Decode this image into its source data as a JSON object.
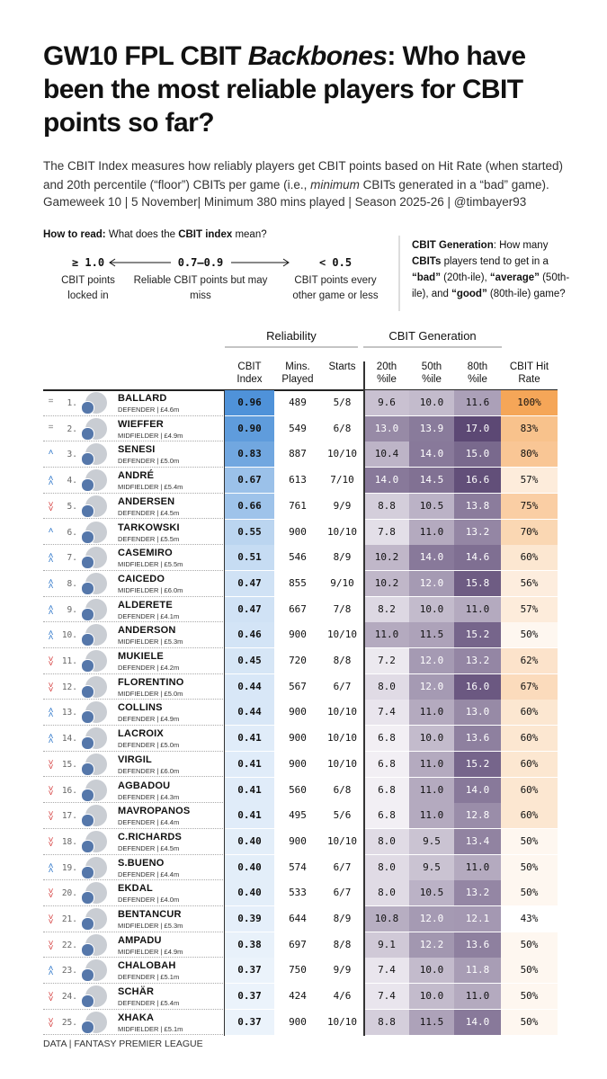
{
  "header": {
    "title_parts": [
      "GW10 FPL CBIT ",
      "Backbones",
      ": Who have been the most reliable players for CBIT points so far?"
    ],
    "subtitle_parts": [
      "The CBIT Index measures how reliably players get CBIT points based on Hit Rate (when started) and 20th percentile (“floor”) CBITs per game (i.e., ",
      "minimum",
      " CBITs generated in a “bad” game)."
    ],
    "meta": "Gameweek 10 | 5 November| Minimum 380 mins played | Season 2025-26 | @timbayer93"
  },
  "how_to_read": {
    "label": "How to read:",
    "question_parts": [
      " What does the ",
      "CBIT index",
      " mean?"
    ],
    "scale": [
      {
        "value": "≥ 1.0",
        "desc": "CBIT points locked in"
      },
      {
        "value": "0.7–0.9",
        "desc": "Reliable CBIT points but may miss"
      },
      {
        "value": "< 0.5",
        "desc": "CBIT points every other game or less"
      }
    ]
  },
  "generation_note": [
    "CBIT Generation",
    ": How many ",
    "CBITs",
    " players tend to get in a ",
    "“bad”",
    " (20th-ile), ",
    "“average”",
    " (50th-ile), and ",
    "“good”",
    " (80th-ile) game?"
  ],
  "table": {
    "groups": [
      "Reliability",
      "CBIT Generation"
    ],
    "columns": [
      "CBIT Index",
      "Mins. Played",
      "Starts",
      "20th %ile",
      "50th %ile",
      "80th %ile",
      "CBIT Hit Rate"
    ],
    "rows": [
      {
        "trend": "=",
        "rank": "1.",
        "name": "BALLARD",
        "info": "DEFENDER | £4.6m",
        "cells": [
          "0.96",
          "489",
          "5/8",
          "9.6",
          "10.0",
          "11.6",
          "100%"
        ]
      },
      {
        "trend": "=",
        "rank": "2.",
        "name": "WIEFFER",
        "info": "MIDFIELDER | £4.9m",
        "cells": [
          "0.90",
          "549",
          "6/8",
          "13.0",
          "13.9",
          "17.0",
          "83%"
        ]
      },
      {
        "trend": "˄",
        "rank": "3.",
        "name": "SENESI",
        "info": "DEFENDER | £5.0m",
        "cells": [
          "0.83",
          "887",
          "10/10",
          "10.4",
          "14.0",
          "15.0",
          "80%"
        ]
      },
      {
        "trend": "˄˄",
        "rank": "4.",
        "name": "ANDRÉ",
        "info": "MIDFIELDER | £5.4m",
        "cells": [
          "0.67",
          "613",
          "7/10",
          "14.0",
          "14.5",
          "16.6",
          "57%"
        ]
      },
      {
        "trend": "˅˅",
        "rank": "5.",
        "name": "ANDERSEN",
        "info": "DEFENDER | £4.5m",
        "cells": [
          "0.66",
          "761",
          "9/9",
          "8.8",
          "10.5",
          "13.8",
          "75%"
        ]
      },
      {
        "trend": "˄",
        "rank": "6.",
        "name": "TARKOWSKI",
        "info": "DEFENDER | £5.5m",
        "cells": [
          "0.55",
          "900",
          "10/10",
          "7.8",
          "11.0",
          "13.2",
          "70%"
        ]
      },
      {
        "trend": "˄˄",
        "rank": "7.",
        "name": "CASEMIRO",
        "info": "MIDFIELDER | £5.5m",
        "cells": [
          "0.51",
          "546",
          "8/9",
          "10.2",
          "14.0",
          "14.6",
          "60%"
        ]
      },
      {
        "trend": "˄˄",
        "rank": "8.",
        "name": "CAICEDO",
        "info": "MIDFIELDER | £6.0m",
        "cells": [
          "0.47",
          "855",
          "9/10",
          "10.2",
          "12.0",
          "15.8",
          "56%"
        ]
      },
      {
        "trend": "˄˄",
        "rank": "9.",
        "name": "ALDERETE",
        "info": "DEFENDER | £4.1m",
        "cells": [
          "0.47",
          "667",
          "7/8",
          "8.2",
          "10.0",
          "11.0",
          "57%"
        ]
      },
      {
        "trend": "˄˄",
        "rank": "10.",
        "name": "ANDERSON",
        "info": "MIDFIELDER | £5.3m",
        "cells": [
          "0.46",
          "900",
          "10/10",
          "11.0",
          "11.5",
          "15.2",
          "50%"
        ]
      },
      {
        "trend": "˅˅",
        "rank": "11.",
        "name": "MUKIELE",
        "info": "DEFENDER | £4.2m",
        "cells": [
          "0.45",
          "720",
          "8/8",
          "7.2",
          "12.0",
          "13.2",
          "62%"
        ]
      },
      {
        "trend": "˅˅",
        "rank": "12.",
        "name": "FLORENTINO",
        "info": "MIDFIELDER | £5.0m",
        "cells": [
          "0.44",
          "567",
          "6/7",
          "8.0",
          "12.0",
          "16.0",
          "67%"
        ]
      },
      {
        "trend": "˄˄",
        "rank": "13.",
        "name": "COLLINS",
        "info": "DEFENDER | £4.9m",
        "cells": [
          "0.44",
          "900",
          "10/10",
          "7.4",
          "11.0",
          "13.0",
          "60%"
        ]
      },
      {
        "trend": "˄˄",
        "rank": "14.",
        "name": "LACROIX",
        "info": "DEFENDER | £5.0m",
        "cells": [
          "0.41",
          "900",
          "10/10",
          "6.8",
          "10.0",
          "13.6",
          "60%"
        ]
      },
      {
        "trend": "˅˅",
        "rank": "15.",
        "name": "VIRGIL",
        "info": "DEFENDER | £6.0m",
        "cells": [
          "0.41",
          "900",
          "10/10",
          "6.8",
          "11.0",
          "15.2",
          "60%"
        ]
      },
      {
        "trend": "˅˅",
        "rank": "16.",
        "name": "AGBADOU",
        "info": "DEFENDER | £4.3m",
        "cells": [
          "0.41",
          "560",
          "6/8",
          "6.8",
          "11.0",
          "14.0",
          "60%"
        ]
      },
      {
        "trend": "˅˅",
        "rank": "17.",
        "name": "MAVROPANOS",
        "info": "DEFENDER | £4.4m",
        "cells": [
          "0.41",
          "495",
          "5/6",
          "6.8",
          "11.0",
          "12.8",
          "60%"
        ]
      },
      {
        "trend": "˅˅",
        "rank": "18.",
        "name": "C.RICHARDS",
        "info": "DEFENDER | £4.5m",
        "cells": [
          "0.40",
          "900",
          "10/10",
          "8.0",
          "9.5",
          "13.4",
          "50%"
        ]
      },
      {
        "trend": "˄˄",
        "rank": "19.",
        "name": "S.BUENO",
        "info": "DEFENDER | £4.4m",
        "cells": [
          "0.40",
          "574",
          "6/7",
          "8.0",
          "9.5",
          "11.0",
          "50%"
        ]
      },
      {
        "trend": "˅˅",
        "rank": "20.",
        "name": "EKDAL",
        "info": "DEFENDER | £4.0m",
        "cells": [
          "0.40",
          "533",
          "6/7",
          "8.0",
          "10.5",
          "13.2",
          "50%"
        ]
      },
      {
        "trend": "˅˅",
        "rank": "21.",
        "name": "BENTANCUR",
        "info": "MIDFIELDER | £5.3m",
        "cells": [
          "0.39",
          "644",
          "8/9",
          "10.8",
          "12.0",
          "12.1",
          "43%"
        ]
      },
      {
        "trend": "˅˅",
        "rank": "22.",
        "name": "AMPADU",
        "info": "MIDFIELDER | £4.9m",
        "cells": [
          "0.38",
          "697",
          "8/8",
          "9.1",
          "12.2",
          "13.6",
          "50%"
        ]
      },
      {
        "trend": "˄˄",
        "rank": "23.",
        "name": "CHALOBAH",
        "info": "DEFENDER | £5.1m",
        "cells": [
          "0.37",
          "750",
          "9/9",
          "7.4",
          "10.0",
          "11.8",
          "50%"
        ]
      },
      {
        "trend": "˅˅",
        "rank": "24.",
        "name": "SCHÄR",
        "info": "DEFENDER | £5.4m",
        "cells": [
          "0.37",
          "424",
          "4/6",
          "7.4",
          "10.0",
          "11.0",
          "50%"
        ]
      },
      {
        "trend": "˅˅",
        "rank": "25.",
        "name": "XHAKA",
        "info": "MIDFIELDER | £5.1m",
        "cells": [
          "0.37",
          "900",
          "10/10",
          "8.8",
          "11.5",
          "14.0",
          "50%"
        ]
      }
    ]
  },
  "footer": "DATA | FANTASY PREMIER LEAGUE"
}
